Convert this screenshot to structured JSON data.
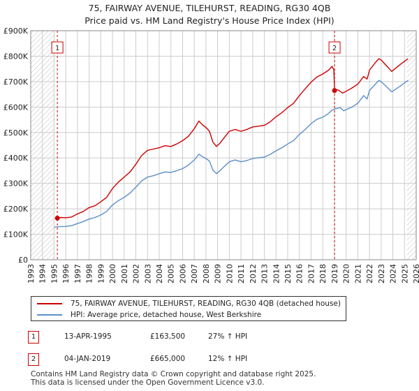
{
  "title_line1": "75, FAIRWAY AVENUE, TILEHURST, READING, RG30 4QB",
  "title_line2": "Price paid vs. HM Land Registry's House Price Index (HPI)",
  "chart_data": {
    "type": "line",
    "title": "75, FAIRWAY AVENUE, TILEHURST, READING, RG30 4QB",
    "subtitle": "Price paid vs. HM Land Registry's House Price Index (HPI)",
    "xlim": [
      1993,
      2026
    ],
    "ylim": [
      0,
      900000
    ],
    "x_ticks": [
      "1993",
      "1994",
      "1995",
      "1996",
      "1997",
      "1998",
      "1999",
      "2000",
      "2001",
      "2002",
      "2003",
      "2004",
      "2005",
      "2006",
      "2007",
      "2008",
      "2009",
      "2010",
      "2011",
      "2012",
      "2013",
      "2014",
      "2015",
      "2016",
      "2017",
      "2018",
      "2019",
      "2020",
      "2021",
      "2022",
      "2023",
      "2024",
      "2025",
      "2026"
    ],
    "y_ticks": [
      {
        "value": 0,
        "label": "£0"
      },
      {
        "value": 100000,
        "label": "£100K"
      },
      {
        "value": 200000,
        "label": "£200K"
      },
      {
        "value": 300000,
        "label": "£300K"
      },
      {
        "value": 400000,
        "label": "£400K"
      },
      {
        "value": 500000,
        "label": "£500K"
      },
      {
        "value": 600000,
        "label": "£600K"
      },
      {
        "value": 700000,
        "label": "£700K"
      },
      {
        "value": 800000,
        "label": "£800K"
      },
      {
        "value": 900000,
        "label": "£900K"
      }
    ],
    "grid": true,
    "hatched_ranges": [
      [
        1993,
        1995.0
      ],
      [
        2025.2,
        2026
      ]
    ],
    "series": [
      {
        "name": "75, FAIRWAY AVENUE, TILEHURST, READING, RG30 4QB (detached house)",
        "color": "#cc0000",
        "points": [
          [
            1995.28,
            163500
          ],
          [
            1995.6,
            166000
          ],
          [
            1996.0,
            165000
          ],
          [
            1996.5,
            168000
          ],
          [
            1997.0,
            180000
          ],
          [
            1997.5,
            190000
          ],
          [
            1998.0,
            205000
          ],
          [
            1998.5,
            212000
          ],
          [
            1999.0,
            228000
          ],
          [
            1999.5,
            245000
          ],
          [
            2000.0,
            280000
          ],
          [
            2000.5,
            305000
          ],
          [
            2001.0,
            325000
          ],
          [
            2001.5,
            345000
          ],
          [
            2002.0,
            375000
          ],
          [
            2002.5,
            410000
          ],
          [
            2003.0,
            430000
          ],
          [
            2003.5,
            435000
          ],
          [
            2004.0,
            440000
          ],
          [
            2004.5,
            448000
          ],
          [
            2005.0,
            445000
          ],
          [
            2005.5,
            455000
          ],
          [
            2006.0,
            468000
          ],
          [
            2006.5,
            485000
          ],
          [
            2007.0,
            515000
          ],
          [
            2007.4,
            545000
          ],
          [
            2007.7,
            530000
          ],
          [
            2008.0,
            520000
          ],
          [
            2008.3,
            505000
          ],
          [
            2008.6,
            462000
          ],
          [
            2008.9,
            445000
          ],
          [
            2009.2,
            458000
          ],
          [
            2009.6,
            482000
          ],
          [
            2010.0,
            505000
          ],
          [
            2010.5,
            512000
          ],
          [
            2011.0,
            505000
          ],
          [
            2011.5,
            512000
          ],
          [
            2012.0,
            522000
          ],
          [
            2012.5,
            525000
          ],
          [
            2013.0,
            528000
          ],
          [
            2013.5,
            542000
          ],
          [
            2014.0,
            562000
          ],
          [
            2014.5,
            578000
          ],
          [
            2015.0,
            598000
          ],
          [
            2015.5,
            615000
          ],
          [
            2016.0,
            645000
          ],
          [
            2016.5,
            672000
          ],
          [
            2017.0,
            698000
          ],
          [
            2017.5,
            718000
          ],
          [
            2018.0,
            730000
          ],
          [
            2018.5,
            745000
          ],
          [
            2018.8,
            760000
          ],
          [
            2018.95,
            745000
          ],
          [
            2019.01,
            665000
          ],
          [
            2019.3,
            668000
          ],
          [
            2019.7,
            655000
          ],
          [
            2020.0,
            662000
          ],
          [
            2020.5,
            675000
          ],
          [
            2021.0,
            690000
          ],
          [
            2021.5,
            720000
          ],
          [
            2021.8,
            710000
          ],
          [
            2022.0,
            745000
          ],
          [
            2022.5,
            775000
          ],
          [
            2022.8,
            790000
          ],
          [
            2023.0,
            785000
          ],
          [
            2023.5,
            760000
          ],
          [
            2023.9,
            740000
          ],
          [
            2024.3,
            755000
          ],
          [
            2024.7,
            770000
          ],
          [
            2025.0,
            780000
          ],
          [
            2025.3,
            790000
          ]
        ]
      },
      {
        "name": "HPI: Average price, detached house, West Berkshire",
        "color": "#5b8fc9",
        "points": [
          [
            1995.0,
            128000
          ],
          [
            1995.5,
            130000
          ],
          [
            1996.0,
            131000
          ],
          [
            1996.5,
            134000
          ],
          [
            1997.0,
            142000
          ],
          [
            1997.5,
            150000
          ],
          [
            1998.0,
            160000
          ],
          [
            1998.5,
            166000
          ],
          [
            1999.0,
            176000
          ],
          [
            1999.5,
            190000
          ],
          [
            2000.0,
            215000
          ],
          [
            2000.5,
            232000
          ],
          [
            2001.0,
            245000
          ],
          [
            2001.5,
            262000
          ],
          [
            2002.0,
            285000
          ],
          [
            2002.5,
            310000
          ],
          [
            2003.0,
            325000
          ],
          [
            2003.5,
            330000
          ],
          [
            2004.0,
            338000
          ],
          [
            2004.5,
            345000
          ],
          [
            2005.0,
            343000
          ],
          [
            2005.5,
            350000
          ],
          [
            2006.0,
            358000
          ],
          [
            2006.5,
            372000
          ],
          [
            2007.0,
            392000
          ],
          [
            2007.4,
            415000
          ],
          [
            2007.7,
            405000
          ],
          [
            2008.0,
            398000
          ],
          [
            2008.3,
            388000
          ],
          [
            2008.6,
            352000
          ],
          [
            2008.9,
            338000
          ],
          [
            2009.2,
            350000
          ],
          [
            2009.6,
            368000
          ],
          [
            2010.0,
            385000
          ],
          [
            2010.5,
            392000
          ],
          [
            2011.0,
            385000
          ],
          [
            2011.5,
            390000
          ],
          [
            2012.0,
            398000
          ],
          [
            2012.5,
            401000
          ],
          [
            2013.0,
            403000
          ],
          [
            2013.5,
            414000
          ],
          [
            2014.0,
            428000
          ],
          [
            2014.5,
            440000
          ],
          [
            2015.0,
            455000
          ],
          [
            2015.5,
            468000
          ],
          [
            2016.0,
            492000
          ],
          [
            2016.5,
            512000
          ],
          [
            2017.0,
            535000
          ],
          [
            2017.5,
            552000
          ],
          [
            2018.0,
            560000
          ],
          [
            2018.5,
            575000
          ],
          [
            2018.8,
            588000
          ],
          [
            2019.0,
            592000
          ],
          [
            2019.5,
            598000
          ],
          [
            2019.8,
            585000
          ],
          [
            2020.0,
            590000
          ],
          [
            2020.5,
            600000
          ],
          [
            2021.0,
            615000
          ],
          [
            2021.5,
            645000
          ],
          [
            2021.8,
            632000
          ],
          [
            2022.0,
            665000
          ],
          [
            2022.5,
            690000
          ],
          [
            2022.8,
            705000
          ],
          [
            2023.0,
            700000
          ],
          [
            2023.5,
            678000
          ],
          [
            2023.9,
            660000
          ],
          [
            2024.3,
            672000
          ],
          [
            2024.7,
            685000
          ],
          [
            2025.0,
            695000
          ],
          [
            2025.3,
            705000
          ]
        ]
      }
    ],
    "sales": [
      {
        "id": "1",
        "x": 1995.28,
        "y": 163500
      },
      {
        "id": "2",
        "x": 2019.01,
        "y": 665000
      }
    ]
  },
  "legend": {
    "property_label": "75, FAIRWAY AVENUE, TILEHURST, READING, RG30 4QB (detached house)",
    "hpi_label": "HPI: Average price, detached house, West Berkshire"
  },
  "transactions": [
    {
      "id": "1",
      "date": "13-APR-1995",
      "price": "£163,500",
      "hpi": "27% ↑ HPI"
    },
    {
      "id": "2",
      "date": "04-JAN-2019",
      "price": "£665,000",
      "hpi": "12% ↑ HPI"
    }
  ],
  "footer": {
    "line1": "Contains HM Land Registry data © Crown copyright and database right 2025.",
    "line2": "This data is licensed under the Open Government Licence v3.0."
  },
  "colors": {
    "property": "#cc0000",
    "hpi": "#5b8fc9",
    "grid": "#cccccc"
  }
}
